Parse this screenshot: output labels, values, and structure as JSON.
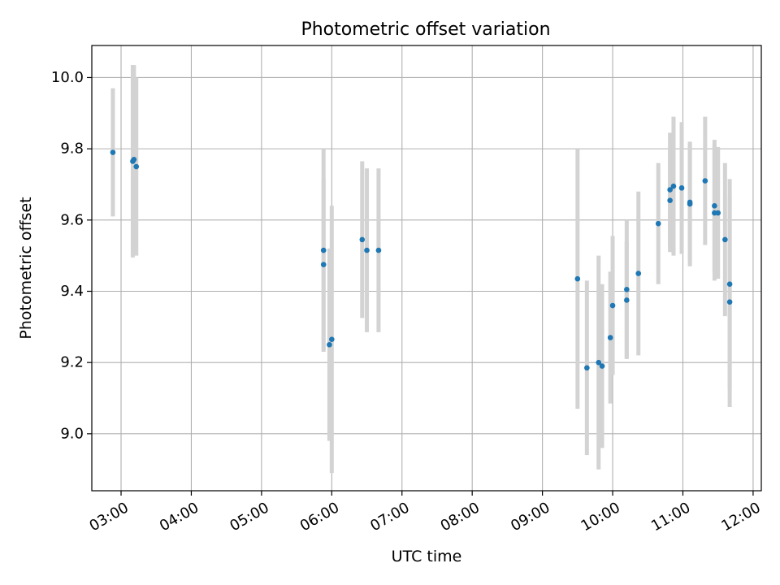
{
  "chart_data": {
    "type": "scatter",
    "title": "Photometric offset variation",
    "xlabel": "UTC time",
    "ylabel": "Photometric offset",
    "x_ticks": [
      "03:00",
      "04:00",
      "05:00",
      "06:00",
      "07:00",
      "08:00",
      "09:00",
      "10:00",
      "11:00",
      "12:00"
    ],
    "y_ticks": [
      "9.0",
      "9.2",
      "9.4",
      "9.6",
      "9.8",
      "10.0"
    ],
    "xlim": [
      "02:35",
      "12:07"
    ],
    "ylim": [
      8.84,
      10.09
    ],
    "grid": true,
    "marker_color": "#1f77b4",
    "errorbar_color": "#d3d3d3",
    "points": [
      {
        "t": "02:53",
        "y": 9.79,
        "err": 0.18
      },
      {
        "t": "03:10",
        "y": 9.765,
        "err": 0.27
      },
      {
        "t": "03:11",
        "y": 9.77,
        "err": 0.265
      },
      {
        "t": "03:13",
        "y": 9.75,
        "err": 0.25
      },
      {
        "t": "05:53",
        "y": 9.475,
        "err": 0.24
      },
      {
        "t": "05:53",
        "y": 9.515,
        "err": 0.285
      },
      {
        "t": "05:58",
        "y": 9.25,
        "err": 0.27
      },
      {
        "t": "06:00",
        "y": 9.265,
        "err": 0.375
      },
      {
        "t": "06:26",
        "y": 9.545,
        "err": 0.22
      },
      {
        "t": "06:30",
        "y": 9.515,
        "err": 0.23
      },
      {
        "t": "06:40",
        "y": 9.515,
        "err": 0.23
      },
      {
        "t": "09:30",
        "y": 9.435,
        "err": 0.365
      },
      {
        "t": "09:38",
        "y": 9.185,
        "err": 0.245
      },
      {
        "t": "09:48",
        "y": 9.2,
        "err": 0.3
      },
      {
        "t": "09:51",
        "y": 9.19,
        "err": 0.23
      },
      {
        "t": "09:58",
        "y": 9.27,
        "err": 0.185
      },
      {
        "t": "10:00",
        "y": 9.36,
        "err": 0.195
      },
      {
        "t": "10:12",
        "y": 9.375,
        "err": 0.165
      },
      {
        "t": "10:12",
        "y": 9.405,
        "err": 0.195
      },
      {
        "t": "10:22",
        "y": 9.45,
        "err": 0.23
      },
      {
        "t": "10:39",
        "y": 9.59,
        "err": 0.17
      },
      {
        "t": "10:49",
        "y": 9.655,
        "err": 0.145
      },
      {
        "t": "10:49",
        "y": 9.685,
        "err": 0.16
      },
      {
        "t": "10:52",
        "y": 9.695,
        "err": 0.195
      },
      {
        "t": "10:59",
        "y": 9.69,
        "err": 0.185
      },
      {
        "t": "11:06",
        "y": 9.645,
        "err": 0.175
      },
      {
        "t": "11:06",
        "y": 9.65,
        "err": 0.165
      },
      {
        "t": "11:19",
        "y": 9.71,
        "err": 0.18
      },
      {
        "t": "11:27",
        "y": 9.62,
        "err": 0.19
      },
      {
        "t": "11:27",
        "y": 9.64,
        "err": 0.185
      },
      {
        "t": "11:30",
        "y": 9.62,
        "err": 0.185
      },
      {
        "t": "11:36",
        "y": 9.545,
        "err": 0.215
      },
      {
        "t": "11:40",
        "y": 9.37,
        "err": 0.295
      },
      {
        "t": "11:40",
        "y": 9.42,
        "err": 0.295
      }
    ]
  }
}
